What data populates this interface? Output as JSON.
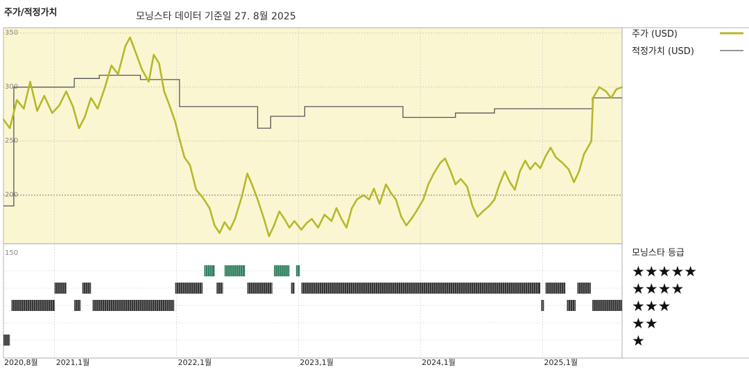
{
  "header": {
    "title": "주가/적정가치",
    "subtitle": "모닝스타 데이터 기준일 27. 8월 2025"
  },
  "legend": {
    "price_label": "주가 (USD)",
    "fair_value_label": "적정가치 (USD)",
    "rating_title": "모닝스타 등급"
  },
  "colors": {
    "price": "#b5b82a",
    "fair_value": "#555555",
    "plot_bg": "#faf6d2",
    "rating_5": "#2e7d5e",
    "rating_other": "#333333"
  },
  "chart_data": [
    {
      "type": "line",
      "title": "",
      "x_axis": "date",
      "ylim": [
        155,
        355
      ],
      "yticks": [
        {
          "value": 350,
          "label": "350"
        },
        {
          "value": 300,
          "label": "300"
        },
        {
          "value": 250,
          "label": "250"
        },
        {
          "value": 200,
          "label": "200"
        },
        {
          "value": 150,
          "label": "150"
        }
      ],
      "xticks": [
        {
          "date": "2020-08-01",
          "label": "2020,8월"
        },
        {
          "date": "2021-01-01",
          "label": "2021,1월"
        },
        {
          "date": "2022-01-01",
          "label": "2022,1월"
        },
        {
          "date": "2023-01-01",
          "label": "2023,1월"
        },
        {
          "date": "2024-01-01",
          "label": "2024,1월"
        },
        {
          "date": "2025-01-01",
          "label": "2025,1월"
        }
      ],
      "grid": true,
      "legend": "right",
      "series": [
        {
          "name": "주가 (USD)",
          "points": [
            [
              "2020-08-01",
              270
            ],
            [
              "2020-08-20",
              262
            ],
            [
              "2020-09-10",
              288
            ],
            [
              "2020-10-01",
              280
            ],
            [
              "2020-10-20",
              305
            ],
            [
              "2020-11-10",
              278
            ],
            [
              "2020-12-01",
              292
            ],
            [
              "2020-12-25",
              276
            ],
            [
              "2021-01-15",
              283
            ],
            [
              "2021-02-05",
              296
            ],
            [
              "2021-02-25",
              282
            ],
            [
              "2021-03-15",
              262
            ],
            [
              "2021-04-01",
              272
            ],
            [
              "2021-04-20",
              290
            ],
            [
              "2021-05-10",
              280
            ],
            [
              "2021-06-01",
              300
            ],
            [
              "2021-06-20",
              320
            ],
            [
              "2021-07-10",
              312
            ],
            [
              "2021-08-01",
              338
            ],
            [
              "2021-08-15",
              346
            ],
            [
              "2021-09-01",
              332
            ],
            [
              "2021-09-20",
              316
            ],
            [
              "2021-10-10",
              305
            ],
            [
              "2021-10-25",
              330
            ],
            [
              "2021-11-10",
              322
            ],
            [
              "2021-11-25",
              296
            ],
            [
              "2021-12-10",
              284
            ],
            [
              "2021-12-28",
              268
            ],
            [
              "2022-01-10",
              252
            ],
            [
              "2022-01-25",
              235
            ],
            [
              "2022-02-10",
              228
            ],
            [
              "2022-03-01",
              205
            ],
            [
              "2022-03-20",
              198
            ],
            [
              "2022-04-10",
              188
            ],
            [
              "2022-04-25",
              172
            ],
            [
              "2022-05-10",
              165
            ],
            [
              "2022-05-25",
              175
            ],
            [
              "2022-06-10",
              168
            ],
            [
              "2022-06-25",
              178
            ],
            [
              "2022-07-15",
              198
            ],
            [
              "2022-08-01",
              220
            ],
            [
              "2022-08-15",
              210
            ],
            [
              "2022-09-01",
              196
            ],
            [
              "2022-09-20",
              178
            ],
            [
              "2022-10-05",
              162
            ],
            [
              "2022-10-20",
              172
            ],
            [
              "2022-11-05",
              185
            ],
            [
              "2022-11-20",
              178
            ],
            [
              "2022-12-05",
              170
            ],
            [
              "2022-12-20",
              176
            ],
            [
              "2023-01-10",
              168
            ],
            [
              "2023-01-25",
              174
            ],
            [
              "2023-02-10",
              178
            ],
            [
              "2023-03-01",
              170
            ],
            [
              "2023-03-20",
              182
            ],
            [
              "2023-04-10",
              176
            ],
            [
              "2023-04-25",
              188
            ],
            [
              "2023-05-10",
              178
            ],
            [
              "2023-05-25",
              170
            ],
            [
              "2023-06-10",
              188
            ],
            [
              "2023-06-25",
              196
            ],
            [
              "2023-07-15",
              200
            ],
            [
              "2023-08-01",
              196
            ],
            [
              "2023-08-15",
              206
            ],
            [
              "2023-09-01",
              192
            ],
            [
              "2023-09-20",
              210
            ],
            [
              "2023-10-05",
              202
            ],
            [
              "2023-10-20",
              196
            ],
            [
              "2023-11-05",
              180
            ],
            [
              "2023-11-20",
              172
            ],
            [
              "2023-12-05",
              178
            ],
            [
              "2023-12-20",
              185
            ],
            [
              "2024-01-10",
              196
            ],
            [
              "2024-01-25",
              210
            ],
            [
              "2024-02-10",
              220
            ],
            [
              "2024-03-01",
              230
            ],
            [
              "2024-03-15",
              234
            ],
            [
              "2024-04-01",
              222
            ],
            [
              "2024-04-15",
              210
            ],
            [
              "2024-05-01",
              215
            ],
            [
              "2024-05-20",
              208
            ],
            [
              "2024-06-05",
              190
            ],
            [
              "2024-06-20",
              180
            ],
            [
              "2024-07-10",
              186
            ],
            [
              "2024-07-25",
              190
            ],
            [
              "2024-08-10",
              196
            ],
            [
              "2024-08-25",
              210
            ],
            [
              "2024-09-10",
              222
            ],
            [
              "2024-09-25",
              212
            ],
            [
              "2024-10-10",
              205
            ],
            [
              "2024-10-25",
              222
            ],
            [
              "2024-11-10",
              232
            ],
            [
              "2024-11-25",
              224
            ],
            [
              "2024-12-10",
              230
            ],
            [
              "2024-12-25",
              225
            ],
            [
              "2025-01-10",
              236
            ],
            [
              "2025-01-25",
              244
            ],
            [
              "2025-02-10",
              235
            ],
            [
              "2025-03-01",
              230
            ],
            [
              "2025-03-20",
              224
            ],
            [
              "2025-04-05",
              212
            ],
            [
              "2025-04-20",
              222
            ],
            [
              "2025-05-05",
              238
            ],
            [
              "2025-05-20",
              246
            ],
            [
              "2025-05-27",
              250
            ],
            [
              "2025-06-01",
              290
            ],
            [
              "2025-06-20",
              300
            ],
            [
              "2025-07-10",
              296
            ],
            [
              "2025-07-25",
              290
            ],
            [
              "2025-08-10",
              298
            ],
            [
              "2025-08-27",
              300
            ]
          ]
        },
        {
          "name": "적정가치 (USD)",
          "step": true,
          "points": [
            [
              "2020-08-01",
              190
            ],
            [
              "2020-09-01",
              300
            ],
            [
              "2021-03-01",
              308
            ],
            [
              "2021-05-15",
              311
            ],
            [
              "2021-09-15",
              307
            ],
            [
              "2022-01-10",
              282
            ],
            [
              "2022-09-01",
              262
            ],
            [
              "2022-10-10",
              273
            ],
            [
              "2023-01-20",
              282
            ],
            [
              "2023-11-10",
              272
            ],
            [
              "2024-04-15",
              276
            ],
            [
              "2024-08-10",
              280
            ],
            [
              "2025-05-30",
              290
            ],
            [
              "2025-08-27",
              290
            ]
          ]
        }
      ]
    },
    {
      "type": "scatter",
      "title": "",
      "series_name": "모닝스타 등급",
      "levels": [
        "★★★★★",
        "★★★★",
        "★★★",
        "★★",
        "★"
      ],
      "segments": [
        {
          "stars": 1,
          "start": "2020-08-01",
          "end": "2020-08-20"
        },
        {
          "stars": 3,
          "start": "2020-08-25",
          "end": "2021-01-01"
        },
        {
          "stars": 4,
          "start": "2021-01-01",
          "end": "2021-02-05"
        },
        {
          "stars": 3,
          "start": "2021-03-01",
          "end": "2021-03-20"
        },
        {
          "stars": 4,
          "start": "2021-03-25",
          "end": "2021-04-20"
        },
        {
          "stars": 3,
          "start": "2021-04-25",
          "end": "2021-12-25"
        },
        {
          "stars": 4,
          "start": "2021-12-28",
          "end": "2022-03-20"
        },
        {
          "stars": 5,
          "start": "2022-03-25",
          "end": "2022-04-25"
        },
        {
          "stars": 4,
          "start": "2022-05-01",
          "end": "2022-05-20"
        },
        {
          "stars": 5,
          "start": "2022-05-25",
          "end": "2022-07-25"
        },
        {
          "stars": 4,
          "start": "2022-08-01",
          "end": "2022-10-15"
        },
        {
          "stars": 5,
          "start": "2022-10-20",
          "end": "2022-12-05"
        },
        {
          "stars": 4,
          "start": "2022-12-10",
          "end": "2022-12-20"
        },
        {
          "stars": 5,
          "start": "2022-12-25",
          "end": "2023-01-05"
        },
        {
          "stars": 4,
          "start": "2023-01-10",
          "end": "2024-12-25"
        },
        {
          "stars": 3,
          "start": "2024-12-28",
          "end": "2025-01-05"
        },
        {
          "stars": 4,
          "start": "2025-01-10",
          "end": "2025-03-10"
        },
        {
          "stars": 3,
          "start": "2025-03-15",
          "end": "2025-04-10"
        },
        {
          "stars": 4,
          "start": "2025-04-15",
          "end": "2025-05-25"
        },
        {
          "stars": 3,
          "start": "2025-05-30",
          "end": "2025-08-27"
        }
      ]
    }
  ]
}
